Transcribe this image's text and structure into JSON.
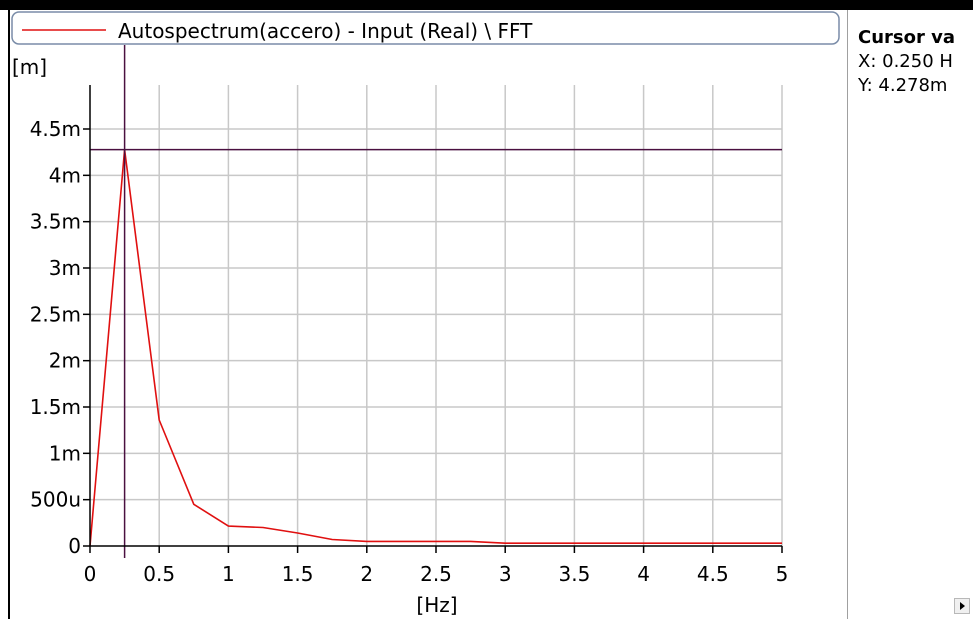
{
  "legend": {
    "label": "Autospectrum(accero) - Input (Real) \\ FFT"
  },
  "cursor_panel": {
    "title": "Cursor va",
    "x_text": "X: 0.250 H",
    "y_text": "Y: 4.278m"
  },
  "colors": {
    "series": "#e01010",
    "cursor": "#4a1040",
    "grid": "#c8c8c8",
    "axis": "#000000"
  },
  "chart_data": {
    "type": "line",
    "xlabel": "[Hz]",
    "ylabel": "[m]",
    "xlim": [
      0,
      5
    ],
    "ylim": [
      0,
      0.005
    ],
    "grid": true,
    "legend_position": "top",
    "x_ticks": [
      0,
      0.5,
      1,
      1.5,
      2,
      2.5,
      3,
      3.5,
      4,
      4.5,
      5
    ],
    "x_tick_labels": [
      "0",
      "0.5",
      "1",
      "1.5",
      "2",
      "2.5",
      "3",
      "3.5",
      "4",
      "4.5",
      "5"
    ],
    "y_ticks": [
      0,
      0.0005,
      0.001,
      0.0015,
      0.002,
      0.0025,
      0.003,
      0.0035,
      0.004,
      0.0045
    ],
    "y_tick_labels": [
      "0",
      "500u",
      "1m",
      "1.5m",
      "2m",
      "2.5m",
      "3m",
      "3.5m",
      "4m",
      "4.5m"
    ],
    "cursor": {
      "x": 0.25,
      "y": 0.004278
    },
    "series": [
      {
        "name": "Autospectrum(accero) - Input (Real) \\ FFT",
        "x": [
          0,
          0.25,
          0.5,
          0.75,
          1.0,
          1.25,
          1.5,
          1.75,
          2.0,
          2.25,
          2.5,
          2.75,
          3.0,
          3.25,
          3.5,
          3.75,
          4.0,
          4.25,
          4.5,
          4.75,
          5.0
        ],
        "y": [
          0,
          0.004278,
          0.00136,
          0.00045,
          0.000215,
          0.0002,
          0.00014,
          7e-05,
          5e-05,
          5e-05,
          5e-05,
          5e-05,
          3e-05,
          3e-05,
          3e-05,
          3e-05,
          3e-05,
          3e-05,
          3e-05,
          3e-05,
          3e-05
        ]
      }
    ]
  }
}
